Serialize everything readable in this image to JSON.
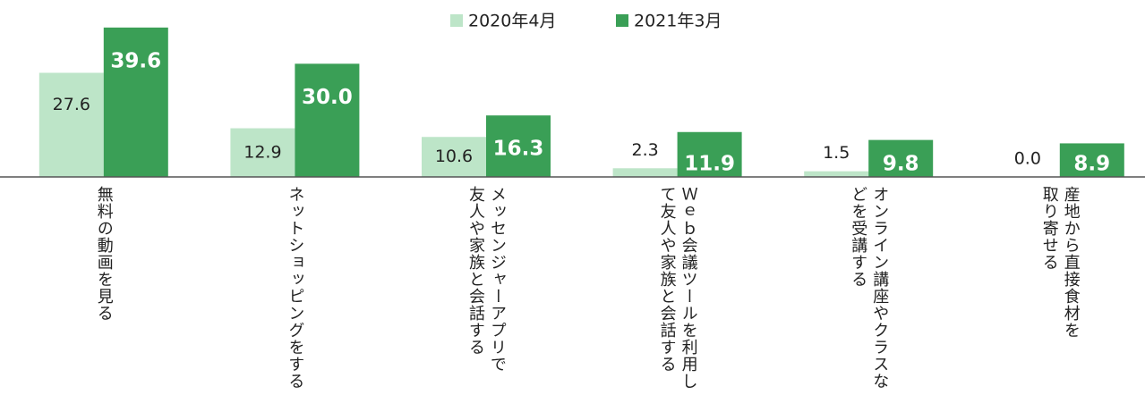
{
  "chart_data": {
    "type": "bar",
    "categories": [
      "無料の動画を見る",
      "ネットショッピングをする",
      "メッセンジャーアプリで\n友人や家族と会話する",
      "Ｗｅｂ会議ツールを利用し\nて友人や家族と会話する",
      "オンライン講座やクラスな\nどを受講する",
      "産地から直接食材を\n取り寄せる"
    ],
    "series": [
      {
        "name": "2020年4月",
        "color": "#bde5c8",
        "values": [
          27.6,
          12.9,
          10.6,
          2.3,
          1.5,
          0.0
        ],
        "value_labels": [
          "27.6",
          "12.9",
          "10.6",
          "2.3",
          "1.5",
          "0.0"
        ]
      },
      {
        "name": "2021年3月",
        "color": "#3a9f56",
        "values": [
          39.6,
          30.0,
          16.3,
          11.9,
          9.8,
          8.9
        ],
        "value_labels": [
          "39.6",
          "30.0",
          "16.3",
          "11.9",
          "9.8",
          "8.9"
        ]
      }
    ],
    "ylim": [
      0,
      45
    ],
    "legend": "top"
  }
}
